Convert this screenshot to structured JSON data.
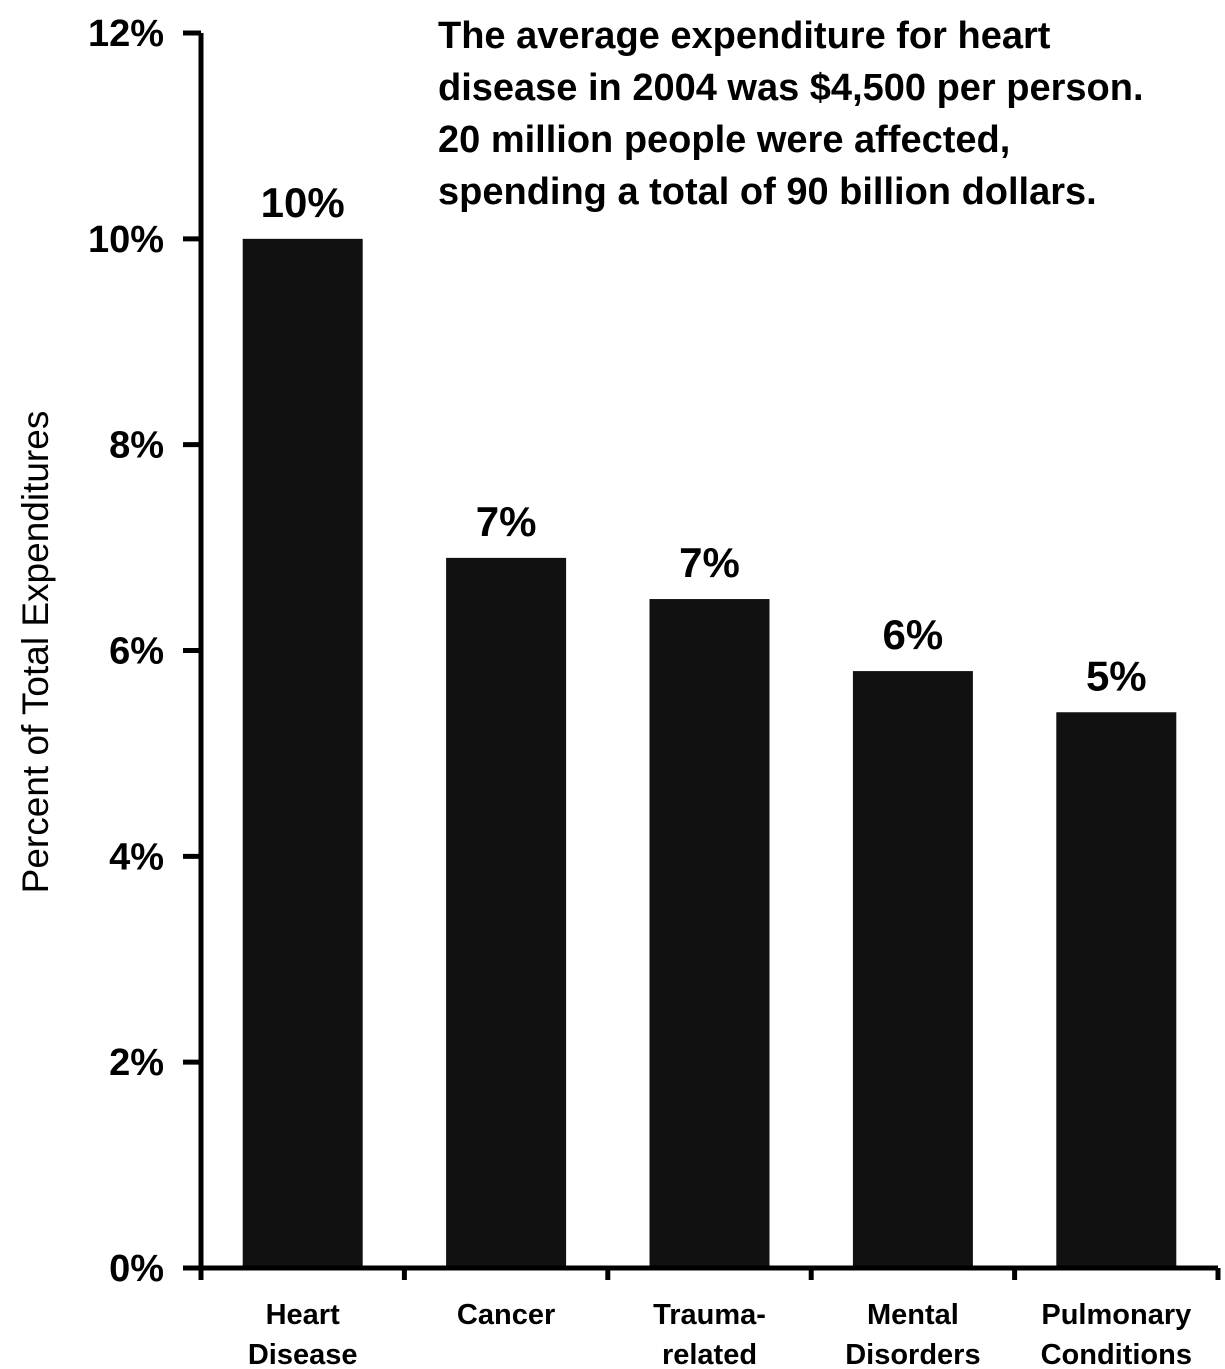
{
  "chart_data": {
    "type": "bar",
    "categories": [
      [
        "Heart",
        "Disease"
      ],
      [
        "Cancer"
      ],
      [
        "Trauma-",
        "related"
      ],
      [
        "Mental",
        "Disorders"
      ],
      [
        "Pulmonary",
        "Conditions"
      ]
    ],
    "values": [
      10.0,
      6.9,
      6.5,
      5.8,
      5.4
    ],
    "data_labels": [
      "10%",
      "7%",
      "7%",
      "6%",
      "5%"
    ],
    "ylabel": "Percent of Total Expenditures",
    "ylim": [
      0,
      12
    ],
    "yticks": [
      0,
      2,
      4,
      6,
      8,
      10,
      12
    ],
    "ytick_labels": [
      "0%",
      "2%",
      "4%",
      "6%",
      "8%",
      "10%",
      "12%"
    ],
    "annotation": [
      "The average expenditure for heart",
      "disease in 2004 was $4,500 per person.",
      "20 million people were affected,",
      "spending a total of 90 billion dollars."
    ],
    "grid": false,
    "legend": "none",
    "bar_color": "#111111"
  }
}
